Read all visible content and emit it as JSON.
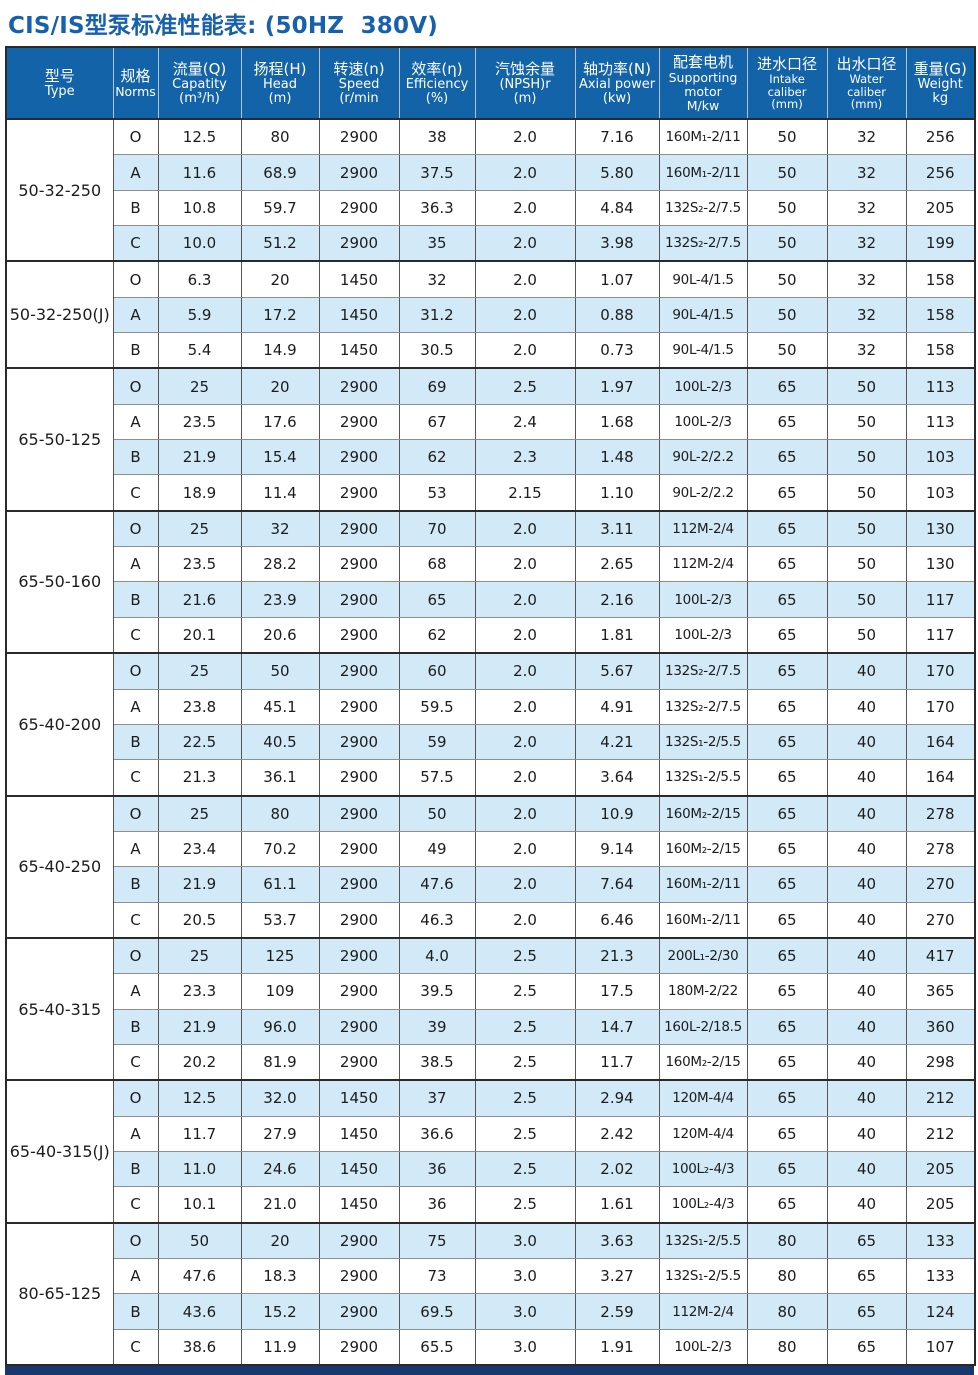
{
  "title": "CIS/IS型泵标准性能表: (50HZ  380V)",
  "table": {
    "columns": [
      {
        "zh": "型号",
        "en": [
          "Type"
        ]
      },
      {
        "zh": "规格",
        "en": [
          "Norms"
        ]
      },
      {
        "zh": "流量(Q)",
        "en": [
          "Capatity",
          "(m³/h)"
        ]
      },
      {
        "zh": "扬程(H)",
        "en": [
          "Head",
          "(m)"
        ]
      },
      {
        "zh": "转速(n)",
        "en": [
          "Speed",
          "(r/min"
        ]
      },
      {
        "zh": "效率(η)",
        "en": [
          "Efficiency",
          "(%)"
        ]
      },
      {
        "zh": "汽蚀余量",
        "en": [
          "(NPSH)r",
          "(m)"
        ]
      },
      {
        "zh": "轴功率(N)",
        "en": [
          "Axial power",
          "(kw)"
        ]
      },
      {
        "zh": "配套电机",
        "en": [
          "Supporting",
          "motor",
          "M/kw"
        ]
      },
      {
        "zh": "进水口径",
        "en": [
          "Intake caliber",
          "(mm)"
        ]
      },
      {
        "zh": "出水口径",
        "en": [
          "Water caliber",
          "(mm)"
        ]
      },
      {
        "zh": "重量(G)",
        "en": [
          "Weight",
          "kg"
        ]
      }
    ],
    "groups": [
      {
        "type": "50-32-250",
        "rows": [
          {
            "norm": "O",
            "q": "12.5",
            "h": "80",
            "n": "2900",
            "eff": "38",
            "npsh": "2.0",
            "power": "7.16",
            "motor": "160M₁-2/11",
            "intake": "50",
            "outlet": "32",
            "weight": "256"
          },
          {
            "norm": "A",
            "q": "11.6",
            "h": "68.9",
            "n": "2900",
            "eff": "37.5",
            "npsh": "2.0",
            "power": "5.80",
            "motor": "160M₁-2/11",
            "intake": "50",
            "outlet": "32",
            "weight": "256"
          },
          {
            "norm": "B",
            "q": "10.8",
            "h": "59.7",
            "n": "2900",
            "eff": "36.3",
            "npsh": "2.0",
            "power": "4.84",
            "motor": "132S₂-2/7.5",
            "intake": "50",
            "outlet": "32",
            "weight": "205"
          },
          {
            "norm": "C",
            "q": "10.0",
            "h": "51.2",
            "n": "2900",
            "eff": "35",
            "npsh": "2.0",
            "power": "3.98",
            "motor": "132S₂-2/7.5",
            "intake": "50",
            "outlet": "32",
            "weight": "199"
          }
        ]
      },
      {
        "type": "50-32-250(J)",
        "rows": [
          {
            "norm": "O",
            "q": "6.3",
            "h": "20",
            "n": "1450",
            "eff": "32",
            "npsh": "2.0",
            "power": "1.07",
            "motor": "90L-4/1.5",
            "intake": "50",
            "outlet": "32",
            "weight": "158"
          },
          {
            "norm": "A",
            "q": "5.9",
            "h": "17.2",
            "n": "1450",
            "eff": "31.2",
            "npsh": "2.0",
            "power": "0.88",
            "motor": "90L-4/1.5",
            "intake": "50",
            "outlet": "32",
            "weight": "158"
          },
          {
            "norm": "B",
            "q": "5.4",
            "h": "14.9",
            "n": "1450",
            "eff": "30.5",
            "npsh": "2.0",
            "power": "0.73",
            "motor": "90L-4/1.5",
            "intake": "50",
            "outlet": "32",
            "weight": "158"
          }
        ]
      },
      {
        "type": "65-50-125",
        "rows": [
          {
            "norm": "O",
            "q": "25",
            "h": "20",
            "n": "2900",
            "eff": "69",
            "npsh": "2.5",
            "power": "1.97",
            "motor": "100L-2/3",
            "intake": "65",
            "outlet": "50",
            "weight": "113"
          },
          {
            "norm": "A",
            "q": "23.5",
            "h": "17.6",
            "n": "2900",
            "eff": "67",
            "npsh": "2.4",
            "power": "1.68",
            "motor": "100L-2/3",
            "intake": "65",
            "outlet": "50",
            "weight": "113"
          },
          {
            "norm": "B",
            "q": "21.9",
            "h": "15.4",
            "n": "2900",
            "eff": "62",
            "npsh": "2.3",
            "power": "1.48",
            "motor": "90L-2/2.2",
            "intake": "65",
            "outlet": "50",
            "weight": "103"
          },
          {
            "norm": "C",
            "q": "18.9",
            "h": "11.4",
            "n": "2900",
            "eff": "53",
            "npsh": "2.15",
            "power": "1.10",
            "motor": "90L-2/2.2",
            "intake": "65",
            "outlet": "50",
            "weight": "103"
          }
        ]
      },
      {
        "type": "65-50-160",
        "rows": [
          {
            "norm": "O",
            "q": "25",
            "h": "32",
            "n": "2900",
            "eff": "70",
            "npsh": "2.0",
            "power": "3.11",
            "motor": "112M-2/4",
            "intake": "65",
            "outlet": "50",
            "weight": "130"
          },
          {
            "norm": "A",
            "q": "23.5",
            "h": "28.2",
            "n": "2900",
            "eff": "68",
            "npsh": "2.0",
            "power": "2.65",
            "motor": "112M-2/4",
            "intake": "65",
            "outlet": "50",
            "weight": "130"
          },
          {
            "norm": "B",
            "q": "21.6",
            "h": "23.9",
            "n": "2900",
            "eff": "65",
            "npsh": "2.0",
            "power": "2.16",
            "motor": "100L-2/3",
            "intake": "65",
            "outlet": "50",
            "weight": "117"
          },
          {
            "norm": "C",
            "q": "20.1",
            "h": "20.6",
            "n": "2900",
            "eff": "62",
            "npsh": "2.0",
            "power": "1.81",
            "motor": "100L-2/3",
            "intake": "65",
            "outlet": "50",
            "weight": "117"
          }
        ]
      },
      {
        "type": "65-40-200",
        "rows": [
          {
            "norm": "O",
            "q": "25",
            "h": "50",
            "n": "2900",
            "eff": "60",
            "npsh": "2.0",
            "power": "5.67",
            "motor": "132S₂-2/7.5",
            "intake": "65",
            "outlet": "40",
            "weight": "170"
          },
          {
            "norm": "A",
            "q": "23.8",
            "h": "45.1",
            "n": "2900",
            "eff": "59.5",
            "npsh": "2.0",
            "power": "4.91",
            "motor": "132S₂-2/7.5",
            "intake": "65",
            "outlet": "40",
            "weight": "170"
          },
          {
            "norm": "B",
            "q": "22.5",
            "h": "40.5",
            "n": "2900",
            "eff": "59",
            "npsh": "2.0",
            "power": "4.21",
            "motor": "132S₁-2/5.5",
            "intake": "65",
            "outlet": "40",
            "weight": "164"
          },
          {
            "norm": "C",
            "q": "21.3",
            "h": "36.1",
            "n": "2900",
            "eff": "57.5",
            "npsh": "2.0",
            "power": "3.64",
            "motor": "132S₁-2/5.5",
            "intake": "65",
            "outlet": "40",
            "weight": "164"
          }
        ]
      },
      {
        "type": "65-40-250",
        "rows": [
          {
            "norm": "O",
            "q": "25",
            "h": "80",
            "n": "2900",
            "eff": "50",
            "npsh": "2.0",
            "power": "10.9",
            "motor": "160M₂-2/15",
            "intake": "65",
            "outlet": "40",
            "weight": "278"
          },
          {
            "norm": "A",
            "q": "23.4",
            "h": "70.2",
            "n": "2900",
            "eff": "49",
            "npsh": "2.0",
            "power": "9.14",
            "motor": "160M₂-2/15",
            "intake": "65",
            "outlet": "40",
            "weight": "278"
          },
          {
            "norm": "B",
            "q": "21.9",
            "h": "61.1",
            "n": "2900",
            "eff": "47.6",
            "npsh": "2.0",
            "power": "7.64",
            "motor": "160M₁-2/11",
            "intake": "65",
            "outlet": "40",
            "weight": "270"
          },
          {
            "norm": "C",
            "q": "20.5",
            "h": "53.7",
            "n": "2900",
            "eff": "46.3",
            "npsh": "2.0",
            "power": "6.46",
            "motor": "160M₁-2/11",
            "intake": "65",
            "outlet": "40",
            "weight": "270"
          }
        ]
      },
      {
        "type": "65-40-315",
        "rows": [
          {
            "norm": "O",
            "q": "25",
            "h": "125",
            "n": "2900",
            "eff": "4.0",
            "npsh": "2.5",
            "power": "21.3",
            "motor": "200L₁-2/30",
            "intake": "65",
            "outlet": "40",
            "weight": "417"
          },
          {
            "norm": "A",
            "q": "23.3",
            "h": "109",
            "n": "2900",
            "eff": "39.5",
            "npsh": "2.5",
            "power": "17.5",
            "motor": "180M-2/22",
            "intake": "65",
            "outlet": "40",
            "weight": "365"
          },
          {
            "norm": "B",
            "q": "21.9",
            "h": "96.0",
            "n": "2900",
            "eff": "39",
            "npsh": "2.5",
            "power": "14.7",
            "motor": "160L-2/18.5",
            "intake": "65",
            "outlet": "40",
            "weight": "360"
          },
          {
            "norm": "C",
            "q": "20.2",
            "h": "81.9",
            "n": "2900",
            "eff": "38.5",
            "npsh": "2.5",
            "power": "11.7",
            "motor": "160M₂-2/15",
            "intake": "65",
            "outlet": "40",
            "weight": "298"
          }
        ]
      },
      {
        "type": "65-40-315(J)",
        "rows": [
          {
            "norm": "O",
            "q": "12.5",
            "h": "32.0",
            "n": "1450",
            "eff": "37",
            "npsh": "2.5",
            "power": "2.94",
            "motor": "120M-4/4",
            "intake": "65",
            "outlet": "40",
            "weight": "212"
          },
          {
            "norm": "A",
            "q": "11.7",
            "h": "27.9",
            "n": "1450",
            "eff": "36.6",
            "npsh": "2.5",
            "power": "2.42",
            "motor": "120M-4/4",
            "intake": "65",
            "outlet": "40",
            "weight": "212"
          },
          {
            "norm": "B",
            "q": "11.0",
            "h": "24.6",
            "n": "1450",
            "eff": "36",
            "npsh": "2.5",
            "power": "2.02",
            "motor": "100L₂-4/3",
            "intake": "65",
            "outlet": "40",
            "weight": "205"
          },
          {
            "norm": "C",
            "q": "10.1",
            "h": "21.0",
            "n": "1450",
            "eff": "36",
            "npsh": "2.5",
            "power": "1.61",
            "motor": "100L₂-4/3",
            "intake": "65",
            "outlet": "40",
            "weight": "205"
          }
        ]
      },
      {
        "type": "80-65-125",
        "rows": [
          {
            "norm": "O",
            "q": "50",
            "h": "20",
            "n": "2900",
            "eff": "75",
            "npsh": "3.0",
            "power": "3.63",
            "motor": "132S₁-2/5.5",
            "intake": "80",
            "outlet": "65",
            "weight": "133"
          },
          {
            "norm": "A",
            "q": "47.6",
            "h": "18.3",
            "n": "2900",
            "eff": "73",
            "npsh": "3.0",
            "power": "3.27",
            "motor": "132S₁-2/5.5",
            "intake": "80",
            "outlet": "65",
            "weight": "133"
          },
          {
            "norm": "B",
            "q": "43.6",
            "h": "15.2",
            "n": "2900",
            "eff": "69.5",
            "npsh": "3.0",
            "power": "2.59",
            "motor": "112M-2/4",
            "intake": "80",
            "outlet": "65",
            "weight": "124"
          },
          {
            "norm": "C",
            "q": "38.6",
            "h": "11.9",
            "n": "2900",
            "eff": "65.5",
            "npsh": "3.0",
            "power": "1.91",
            "motor": "100L-2/3",
            "intake": "80",
            "outlet": "65",
            "weight": "107"
          }
        ]
      }
    ]
  }
}
